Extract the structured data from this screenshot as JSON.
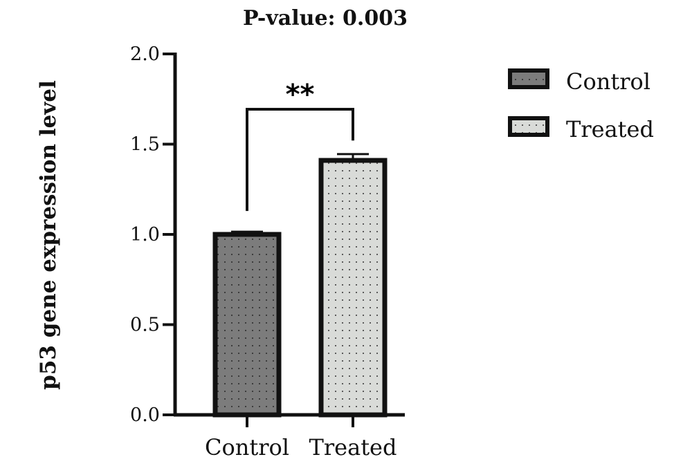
{
  "chart_data": {
    "type": "bar",
    "title": "P-value: 0.003",
    "ylabel": "p53 gene expression level",
    "xlabel": "",
    "categories": [
      "Control",
      "Treated"
    ],
    "values": [
      1.0,
      1.41
    ],
    "errors": [
      0.015,
      0.035
    ],
    "ylim": [
      0,
      2.0
    ],
    "yticks": [
      "0.0",
      "0.5",
      "1.0",
      "1.5",
      "2.0"
    ],
    "significance": "**",
    "legend": {
      "placement": "top-right",
      "entries": [
        {
          "label": "Control",
          "color": "#7c7c7c"
        },
        {
          "label": "Treated",
          "color": "#d9dbd8"
        }
      ]
    },
    "colors": [
      "#7c7c7c",
      "#d9dbd8"
    ],
    "grid": false
  }
}
